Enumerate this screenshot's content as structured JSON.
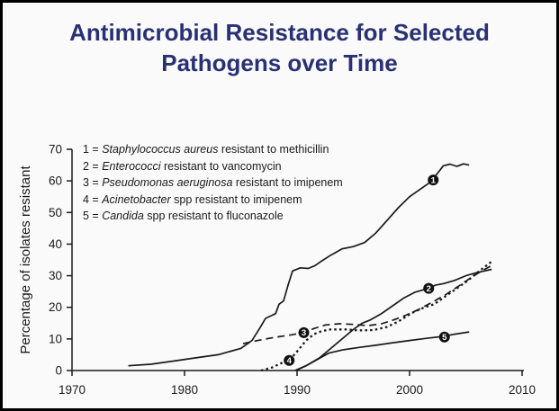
{
  "header": {
    "title": "Antimicrobial Resistance for Selected Pathogens over Time"
  },
  "colors": {
    "title_navy": "#293174",
    "line_black": "#1a1a1a",
    "background": "#fafafa",
    "marker_fill": "#111111",
    "marker_text": "#ffffff"
  },
  "legend": {
    "items": [
      {
        "num": "1",
        "organism": "Staphylococcus aureus",
        "rest": "resistant to methicillin"
      },
      {
        "num": "2",
        "organism": "Enterococci",
        "rest": "resistant to vancomycin"
      },
      {
        "num": "3",
        "organism": "Pseudomonas aeruginosa",
        "rest": "resistant to imipenem"
      },
      {
        "num": "4",
        "organism": "Acinetobacter",
        "rest": "spp resistant to imipenem"
      },
      {
        "num": "5",
        "organism": "Candida",
        "rest": "spp resistant to fluconazole"
      }
    ]
  },
  "chart_data": {
    "type": "line",
    "title": "Antimicrobial Resistance for Selected Pathogens over Time",
    "xlabel": "",
    "ylabel": "Percentage of isolates resistant",
    "xlim": [
      1970,
      2010
    ],
    "ylim": [
      0,
      70
    ],
    "x_ticks": [
      "1970",
      "1980",
      "1990",
      "2000",
      "2010"
    ],
    "y_ticks": [
      "0",
      "10",
      "20",
      "30",
      "40",
      "50",
      "60",
      "70"
    ],
    "grid": false,
    "legend_position": "upper-left-inside",
    "series": [
      {
        "id": "1",
        "name": "Staphylococcus aureus resistant to methicillin",
        "line_style": "solid",
        "marker": {
          "label": "1",
          "x": 2002.1,
          "y": 60.3
        },
        "points": [
          [
            1975,
            1.5
          ],
          [
            1977,
            2
          ],
          [
            1979,
            3
          ],
          [
            1981,
            4
          ],
          [
            1983,
            5
          ],
          [
            1985,
            7
          ],
          [
            1986,
            9.5
          ],
          [
            1986.7,
            13.5
          ],
          [
            1987.2,
            16.5
          ],
          [
            1987.8,
            17.5
          ],
          [
            1988.1,
            18
          ],
          [
            1988.4,
            21
          ],
          [
            1988.8,
            22
          ],
          [
            1989.2,
            27
          ],
          [
            1989.6,
            31.5
          ],
          [
            1990.3,
            32.5
          ],
          [
            1991,
            32.3
          ],
          [
            1991.6,
            33.2
          ],
          [
            1992.2,
            34.7
          ],
          [
            1993,
            36.5
          ],
          [
            1994,
            38.5
          ],
          [
            1995,
            39.2
          ],
          [
            1996,
            40.5
          ],
          [
            1997,
            43.5
          ],
          [
            1998,
            47.5
          ],
          [
            1999,
            51.5
          ],
          [
            2000,
            55
          ],
          [
            2001,
            57.5
          ],
          [
            2001.8,
            59.5
          ],
          [
            2002.5,
            62.5
          ],
          [
            2003,
            64.8
          ],
          [
            2003.6,
            65.3
          ],
          [
            2004.2,
            64.6
          ],
          [
            2004.8,
            65.4
          ],
          [
            2005.3,
            65
          ]
        ]
      },
      {
        "id": "2",
        "name": "Enterococci resistant to vancomycin",
        "line_style": "solid",
        "marker": {
          "label": "2",
          "x": 2001.7,
          "y": 26
        },
        "points": [
          [
            1989.8,
            0
          ],
          [
            1990.8,
            1.5
          ],
          [
            1992,
            4
          ],
          [
            1993,
            7
          ],
          [
            1994,
            10
          ],
          [
            1995,
            13
          ],
          [
            1995.8,
            15
          ],
          [
            1996.5,
            16
          ],
          [
            1997.5,
            18
          ],
          [
            1998.5,
            20.5
          ],
          [
            1999.5,
            23
          ],
          [
            2000.5,
            24.8
          ],
          [
            2001.5,
            25.8
          ],
          [
            2002.3,
            27
          ],
          [
            2003,
            27.5
          ],
          [
            2004,
            28.5
          ],
          [
            2005,
            30
          ],
          [
            2006,
            31
          ],
          [
            2007.3,
            32
          ]
        ]
      },
      {
        "id": "3",
        "name": "Pseudomonas aeruginosa resistant to imipenem",
        "line_style": "dashed",
        "marker": {
          "label": "3",
          "x": 1990.6,
          "y": 12
        },
        "points": [
          [
            1985.2,
            8.5
          ],
          [
            1986.5,
            9.5
          ],
          [
            1988,
            10.5
          ],
          [
            1989.5,
            11.3
          ],
          [
            1990.6,
            12
          ],
          [
            1991.5,
            13.3
          ],
          [
            1992.5,
            14.4
          ],
          [
            1993.8,
            14.8
          ],
          [
            1995,
            14.6
          ],
          [
            1996.3,
            14.2
          ],
          [
            1997.5,
            14.8
          ],
          [
            1998.5,
            15.9
          ],
          [
            1999.6,
            17.4
          ],
          [
            2000.8,
            19.3
          ],
          [
            2002,
            21.6
          ],
          [
            2003.2,
            24
          ],
          [
            2004.4,
            26.8
          ],
          [
            2005.5,
            29.5
          ],
          [
            2006.4,
            31.5
          ],
          [
            2007.3,
            33.2
          ]
        ]
      },
      {
        "id": "4",
        "name": "Acinetobacter spp resistant to imipenem",
        "line_style": "dotted",
        "marker": {
          "label": "4",
          "x": 1989.3,
          "y": 3.2
        },
        "points": [
          [
            1986.8,
            0
          ],
          [
            1987.8,
            1
          ],
          [
            1988.7,
            2.5
          ],
          [
            1989.3,
            3.2
          ],
          [
            1990,
            6
          ],
          [
            1990.8,
            9.5
          ],
          [
            1991.5,
            11.5
          ],
          [
            1992.2,
            12.5
          ],
          [
            1993,
            13
          ],
          [
            1994.3,
            13
          ],
          [
            1995.5,
            12.7
          ],
          [
            1996.8,
            12.8
          ],
          [
            1998,
            13.8
          ],
          [
            1999,
            15.5
          ],
          [
            2000.2,
            18.2
          ],
          [
            2001.2,
            19.8
          ],
          [
            2002.2,
            21
          ],
          [
            2003.2,
            23.5
          ],
          [
            2004.2,
            26
          ],
          [
            2005.2,
            28.5
          ],
          [
            2006.2,
            31.5
          ],
          [
            2007.3,
            34.5
          ]
        ]
      },
      {
        "id": "5",
        "name": "Candida spp resistant to fluconazole",
        "line_style": "solid",
        "marker": {
          "label": "5",
          "x": 2003.1,
          "y": 10.6
        },
        "points": [
          [
            1989.9,
            0
          ],
          [
            1990.8,
            1.5
          ],
          [
            1991.8,
            3.5
          ],
          [
            1992.8,
            5.5
          ],
          [
            1994,
            6.5
          ],
          [
            1995.5,
            7.3
          ],
          [
            1997,
            8
          ],
          [
            1998.5,
            8.8
          ],
          [
            2000,
            9.5
          ],
          [
            2001.5,
            10.2
          ],
          [
            2003,
            10.8
          ],
          [
            2004,
            11.5
          ],
          [
            2005.3,
            12.2
          ]
        ]
      }
    ]
  }
}
